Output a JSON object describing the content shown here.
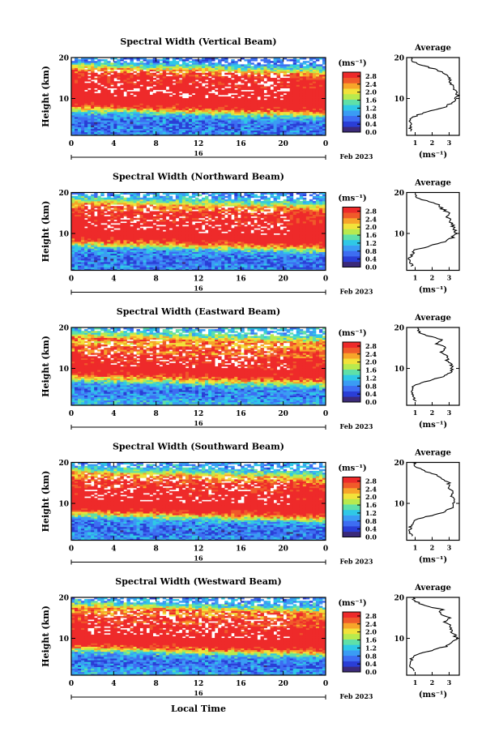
{
  "figure": {
    "xlabel": "Local Time",
    "date_label": "Feb 2023",
    "day_label": "16",
    "colorbar_unit": "(ms⁻¹)",
    "colorbar_ticks": [
      "0.0",
      "0.4",
      "0.8",
      "1.2",
      "1.6",
      "2.0",
      "2.4",
      "2.8"
    ],
    "colorbar_colors": [
      "#3b2a7a",
      "#2a3ed6",
      "#3d6df2",
      "#3a9cf4",
      "#2fc8e6",
      "#5fe0a8",
      "#b8ea4e",
      "#f2e23a",
      "#f7a52a",
      "#f05a2a",
      "#ee2a2a"
    ],
    "avg_title": "Average",
    "avg_xlabel": "(ms⁻¹)"
  },
  "chart_data": [
    {
      "type": "heatmap",
      "title": "Spectral Width (Vertical Beam)",
      "ylabel": "Height (km)",
      "xlabel": "Local Time",
      "x_ticks": [
        "0",
        "4",
        "8",
        "12",
        "16",
        "20",
        "0"
      ],
      "xlim": [
        0,
        24
      ],
      "y_ticks": [
        "10",
        "20"
      ],
      "ylim": [
        1,
        20
      ],
      "z_range": [
        0.0,
        3.0
      ],
      "profile": {
        "heights": [
          2,
          3,
          4,
          5,
          6,
          7,
          8,
          9,
          10,
          11,
          12,
          13,
          14,
          15,
          16,
          17,
          18,
          19,
          20
        ],
        "values": [
          0.8,
          0.7,
          0.7,
          0.8,
          1.1,
          2.0,
          2.8,
          3.2,
          3.4,
          3.5,
          3.3,
          3.2,
          3.0,
          3.1,
          2.8,
          2.3,
          1.5,
          0.9,
          0.7
        ],
        "xlim": [
          0.5,
          3.6
        ],
        "x_ticks": [
          "1",
          "2",
          "3"
        ],
        "y_ticks": [
          "10",
          "20"
        ],
        "title": "Average",
        "xlabel": "(ms⁻¹)"
      }
    },
    {
      "type": "heatmap",
      "title": "Spectral Width (Northward Beam)",
      "ylabel": "Height (km)",
      "xlabel": "Local Time",
      "x_ticks": [
        "0",
        "4",
        "8",
        "12",
        "16",
        "20",
        "0"
      ],
      "xlim": [
        0,
        24
      ],
      "y_ticks": [
        "10",
        "20"
      ],
      "ylim": [
        1,
        20
      ],
      "z_range": [
        0.0,
        3.0
      ],
      "profile": {
        "heights": [
          2,
          3,
          4,
          5,
          6,
          7,
          8,
          9,
          10,
          11,
          12,
          13,
          14,
          15,
          16,
          17,
          18,
          19,
          20
        ],
        "values": [
          0.8,
          0.7,
          0.7,
          0.8,
          1.0,
          1.9,
          2.7,
          3.2,
          3.4,
          3.3,
          3.2,
          3.1,
          2.9,
          3.0,
          2.6,
          2.4,
          1.6,
          1.0,
          0.9
        ],
        "xlim": [
          0.5,
          3.6
        ],
        "x_ticks": [
          "1",
          "2",
          "3"
        ],
        "y_ticks": [
          "10",
          "20"
        ],
        "title": "Average",
        "xlabel": "(ms⁻¹)"
      }
    },
    {
      "type": "heatmap",
      "title": "Spectral Width (Eastward Beam)",
      "ylabel": "Height (km)",
      "xlabel": "Local Time",
      "x_ticks": [
        "0",
        "4",
        "8",
        "12",
        "16",
        "20",
        "0"
      ],
      "xlim": [
        0,
        24
      ],
      "y_ticks": [
        "10",
        "20"
      ],
      "ylim": [
        1,
        20
      ],
      "z_range": [
        0.0,
        3.0
      ],
      "profile": {
        "heights": [
          2,
          3,
          4,
          5,
          6,
          7,
          8,
          9,
          10,
          11,
          12,
          13,
          14,
          15,
          16,
          17,
          18,
          19,
          20
        ],
        "values": [
          1.1,
          0.9,
          0.8,
          0.8,
          1.0,
          1.8,
          2.6,
          3.1,
          3.2,
          3.1,
          2.9,
          3.0,
          2.5,
          2.9,
          2.2,
          2.6,
          1.7,
          1.2,
          1.1
        ],
        "xlim": [
          0.5,
          3.6
        ],
        "x_ticks": [
          "1",
          "2",
          "3"
        ],
        "y_ticks": [
          "10",
          "20"
        ],
        "title": "Average",
        "xlabel": "(ms⁻¹)"
      }
    },
    {
      "type": "heatmap",
      "title": "Spectral Width (Southward Beam)",
      "ylabel": "Height (km)",
      "xlabel": "Local Time",
      "x_ticks": [
        "0",
        "4",
        "8",
        "12",
        "16",
        "20",
        "0"
      ],
      "xlim": [
        0,
        24
      ],
      "y_ticks": [
        "10",
        "20"
      ],
      "ylim": [
        1,
        20
      ],
      "z_range": [
        0.0,
        3.0
      ],
      "profile": {
        "heights": [
          2,
          3,
          4,
          5,
          6,
          7,
          8,
          9,
          10,
          11,
          12,
          13,
          14,
          15,
          16,
          17,
          18,
          19,
          20
        ],
        "values": [
          0.9,
          0.7,
          0.7,
          0.8,
          1.0,
          1.9,
          2.8,
          3.2,
          3.3,
          3.4,
          3.1,
          3.2,
          2.9,
          3.0,
          2.5,
          2.3,
          1.5,
          1.0,
          0.9
        ],
        "xlim": [
          0.5,
          3.6
        ],
        "x_ticks": [
          "1",
          "2",
          "3"
        ],
        "y_ticks": [
          "10",
          "20"
        ],
        "title": "Average",
        "xlabel": "(ms⁻¹)"
      }
    },
    {
      "type": "heatmap",
      "title": "Spectral Width (Westward Beam)",
      "ylabel": "Height (km)",
      "xlabel": "Local Time",
      "x_ticks": [
        "0",
        "4",
        "8",
        "12",
        "16",
        "20",
        "0"
      ],
      "xlim": [
        0,
        24
      ],
      "y_ticks": [
        "10",
        "20"
      ],
      "ylim": [
        1,
        20
      ],
      "z_range": [
        0.0,
        3.0
      ],
      "profile": {
        "heights": [
          2,
          3,
          4,
          5,
          6,
          7,
          8,
          9,
          10,
          11,
          12,
          13,
          14,
          15,
          16,
          17,
          18,
          19,
          20
        ],
        "values": [
          1.0,
          0.8,
          0.7,
          0.8,
          1.0,
          1.9,
          2.8,
          3.2,
          3.4,
          3.3,
          3.1,
          3.1,
          2.7,
          3.0,
          2.4,
          2.6,
          1.6,
          1.0,
          0.9
        ],
        "xlim": [
          0.5,
          3.6
        ],
        "x_ticks": [
          "1",
          "2",
          "3"
        ],
        "y_ticks": [
          "10",
          "20"
        ],
        "title": "Average",
        "xlabel": "(ms⁻¹)"
      }
    }
  ]
}
